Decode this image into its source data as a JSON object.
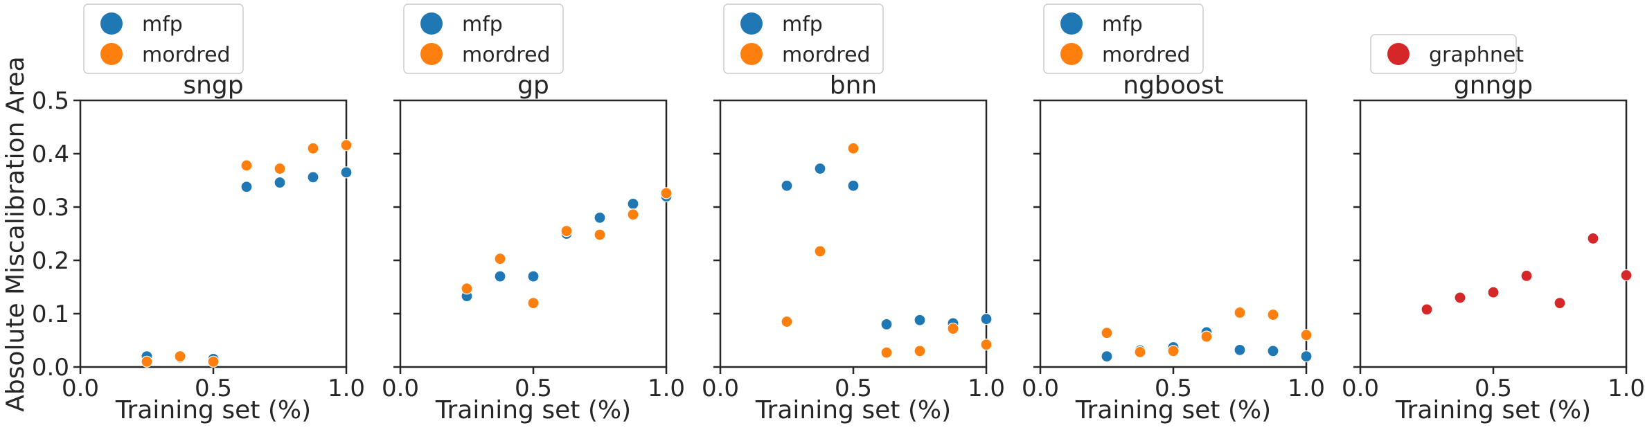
{
  "figure": {
    "ylabel": "Absolute Miscalibration Area",
    "colors": {
      "mfp": "#1f77b4",
      "mordred": "#ff7f0e",
      "graphnet": "#d62728",
      "axis": "#262626",
      "legend_border": "#cccccc"
    }
  },
  "chart_data": [
    {
      "type": "scatter",
      "title": "sngp",
      "xlabel": "Training set (%)",
      "ylabel": "Absolute Miscalibration Area",
      "xlim": [
        0.0,
        1.0
      ],
      "ylim": [
        0.0,
        0.5
      ],
      "xticks": [
        "0.0",
        "0.5",
        "1.0"
      ],
      "yticks": [
        "0.0",
        "0.1",
        "0.2",
        "0.3",
        "0.4",
        "0.5"
      ],
      "grid": false,
      "legend_position": "top-left, above axes",
      "series": [
        {
          "name": "mfp",
          "color": "#1f77b4",
          "x": [
            0.25,
            0.375,
            0.5,
            0.625,
            0.75,
            0.875,
            1.0
          ],
          "y": [
            0.02,
            0.018,
            0.015,
            0.338,
            0.346,
            0.356,
            0.365
          ]
        },
        {
          "name": "mordred",
          "color": "#ff7f0e",
          "x": [
            0.25,
            0.375,
            0.5,
            0.625,
            0.75,
            0.875,
            1.0
          ],
          "y": [
            0.01,
            0.02,
            0.01,
            0.378,
            0.372,
            0.41,
            0.416
          ]
        }
      ]
    },
    {
      "type": "scatter",
      "title": "gp",
      "xlabel": "Training set (%)",
      "xlim": [
        0.0,
        1.0
      ],
      "ylim": [
        0.0,
        0.5
      ],
      "xticks": [
        "0.0",
        "0.5",
        "1.0"
      ],
      "grid": false,
      "legend_position": "top-left, above axes",
      "series": [
        {
          "name": "mfp",
          "color": "#1f77b4",
          "x": [
            0.25,
            0.375,
            0.5,
            0.625,
            0.75,
            0.875,
            1.0
          ],
          "y": [
            0.133,
            0.17,
            0.17,
            0.25,
            0.28,
            0.306,
            0.32
          ]
        },
        {
          "name": "mordred",
          "color": "#ff7f0e",
          "x": [
            0.25,
            0.375,
            0.5,
            0.625,
            0.75,
            0.875,
            1.0
          ],
          "y": [
            0.147,
            0.203,
            0.12,
            0.255,
            0.248,
            0.286,
            0.326
          ]
        }
      ]
    },
    {
      "type": "scatter",
      "title": "bnn",
      "xlabel": "Training set (%)",
      "xlim": [
        0.0,
        1.0
      ],
      "ylim": [
        0.0,
        0.5
      ],
      "xticks": [
        "0.0",
        "0.5",
        "1.0"
      ],
      "grid": false,
      "legend_position": "top-left, above axes",
      "series": [
        {
          "name": "mfp",
          "color": "#1f77b4",
          "x": [
            0.25,
            0.375,
            0.5,
            0.625,
            0.75,
            0.875,
            1.0
          ],
          "y": [
            0.34,
            0.372,
            0.34,
            0.08,
            0.088,
            0.082,
            0.09
          ]
        },
        {
          "name": "mordred",
          "color": "#ff7f0e",
          "x": [
            0.25,
            0.375,
            0.5,
            0.625,
            0.75,
            0.875,
            1.0
          ],
          "y": [
            0.085,
            0.217,
            0.41,
            0.027,
            0.03,
            0.072,
            0.042
          ]
        }
      ]
    },
    {
      "type": "scatter",
      "title": "ngboost",
      "xlabel": "Training set (%)",
      "xlim": [
        0.0,
        1.0
      ],
      "ylim": [
        0.0,
        0.5
      ],
      "xticks": [
        "0.0",
        "0.5",
        "1.0"
      ],
      "grid": false,
      "legend_position": "top-left, above axes",
      "series": [
        {
          "name": "mfp",
          "color": "#1f77b4",
          "x": [
            0.25,
            0.375,
            0.5,
            0.625,
            0.75,
            0.875,
            1.0
          ],
          "y": [
            0.02,
            0.031,
            0.037,
            0.065,
            0.032,
            0.03,
            0.02
          ]
        },
        {
          "name": "mordred",
          "color": "#ff7f0e",
          "x": [
            0.25,
            0.375,
            0.5,
            0.625,
            0.75,
            0.875,
            1.0
          ],
          "y": [
            0.064,
            0.028,
            0.03,
            0.057,
            0.102,
            0.098,
            0.06
          ]
        }
      ]
    },
    {
      "type": "scatter",
      "title": "gnngp",
      "xlabel": "Training set (%)",
      "xlim": [
        0.0,
        1.0
      ],
      "ylim": [
        0.0,
        0.5
      ],
      "xticks": [
        "0.0",
        "0.5",
        "1.0"
      ],
      "grid": false,
      "legend_position": "top-left, above axes",
      "series": [
        {
          "name": "graphnet",
          "color": "#d62728",
          "x": [
            0.25,
            0.375,
            0.5,
            0.625,
            0.75,
            0.875,
            1.0
          ],
          "y": [
            0.108,
            0.13,
            0.14,
            0.171,
            0.12,
            0.241,
            0.172
          ]
        }
      ]
    }
  ]
}
